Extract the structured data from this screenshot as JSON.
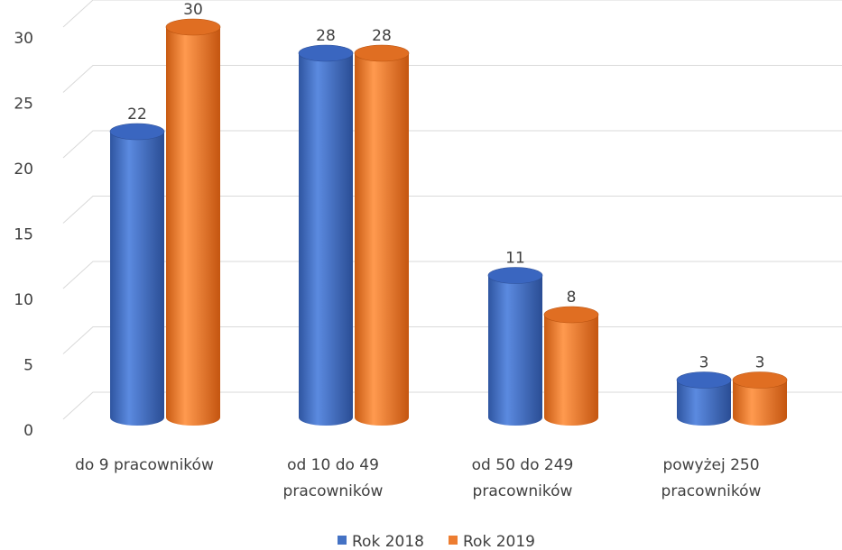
{
  "chart_data": {
    "type": "bar",
    "categories": [
      [
        "do 9 pracowników"
      ],
      [
        "od 10 do 49",
        "pracowników"
      ],
      [
        "od 50 do 249",
        "pracowników"
      ],
      [
        "powyżej 250",
        "pracowników"
      ]
    ],
    "series": [
      {
        "name": "Rok 2018",
        "values": [
          22,
          28,
          11,
          3
        ],
        "color": "#4472c4"
      },
      {
        "name": "Rok 2019",
        "values": [
          30,
          28,
          8,
          3
        ],
        "color": "#ed7d31"
      }
    ],
    "yticks": [
      "0",
      "5",
      "10",
      "15",
      "20",
      "25",
      "30"
    ],
    "ylim": [
      0,
      30
    ],
    "grid": true,
    "legend_position": "bottom",
    "style": "3d-cylinder"
  }
}
